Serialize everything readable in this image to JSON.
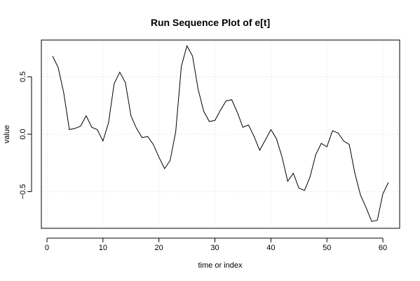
{
  "chart_data": {
    "type": "line",
    "title": "Run Sequence Plot of e[t]",
    "xlabel": "time or index",
    "ylabel": "value",
    "xlim": [
      -1,
      63
    ],
    "ylim": [
      -0.82,
      0.82
    ],
    "grid": true,
    "xticks": [
      0,
      10,
      20,
      30,
      40,
      50,
      60
    ],
    "yticks": [
      -0.5,
      0.0,
      0.5
    ],
    "xtick_labels": [
      "0",
      "10",
      "20",
      "30",
      "40",
      "50",
      "60"
    ],
    "ytick_labels": [
      "−0.5",
      "0.0",
      "0.5"
    ],
    "series": [
      {
        "x": [
          1,
          2,
          3,
          4,
          5,
          6,
          7,
          8,
          9,
          10,
          11,
          12,
          13,
          14,
          15,
          16,
          17,
          18,
          19,
          20,
          21,
          22,
          23,
          24,
          25,
          26,
          27,
          28,
          29,
          30,
          31,
          32,
          33,
          34,
          35,
          36,
          37,
          38,
          39,
          40,
          41,
          42,
          43,
          44,
          45,
          46,
          47,
          48,
          49,
          50,
          51,
          52,
          53,
          54,
          55,
          56,
          57,
          58,
          59,
          60,
          61
        ],
        "values": [
          0.68,
          0.58,
          0.36,
          0.04,
          0.05,
          0.07,
          0.16,
          0.06,
          0.04,
          -0.06,
          0.1,
          0.44,
          0.54,
          0.45,
          0.16,
          0.05,
          -0.03,
          -0.02,
          -0.09,
          -0.2,
          -0.3,
          -0.23,
          0.02,
          0.59,
          0.77,
          0.68,
          0.39,
          0.2,
          0.11,
          0.12,
          0.21,
          0.29,
          0.3,
          0.19,
          0.06,
          0.08,
          -0.02,
          -0.14,
          -0.05,
          0.04,
          -0.04,
          -0.2,
          -0.41,
          -0.34,
          -0.47,
          -0.49,
          -0.37,
          -0.18,
          -0.08,
          -0.11,
          0.03,
          0.01,
          -0.06,
          -0.09,
          -0.34,
          -0.53,
          -0.64,
          -0.76,
          -0.75,
          -0.52,
          -0.42
        ]
      }
    ]
  }
}
